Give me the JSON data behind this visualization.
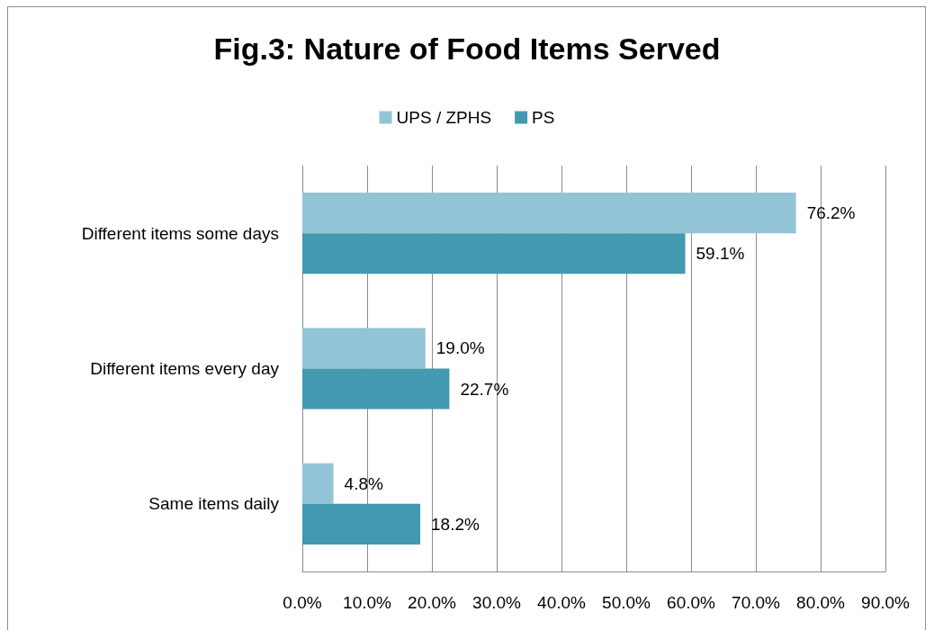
{
  "chart_data": {
    "type": "bar",
    "orientation": "horizontal",
    "title": "Fig.3: Nature of Food Items Served",
    "categories": [
      "Different items some days",
      "Different items every day",
      "Same items daily"
    ],
    "series": [
      {
        "name": "UPS / ZPHS",
        "color": "#93c4d5",
        "values": [
          76.2,
          19.0,
          4.8
        ],
        "value_labels": [
          "76.2%",
          "19.0%",
          "4.8%"
        ]
      },
      {
        "name": "PS",
        "color": "#4299b0",
        "values": [
          59.1,
          22.7,
          18.2
        ],
        "value_labels": [
          "59.1%",
          "22.7%",
          "18.2%"
        ]
      }
    ],
    "xlim": [
      0,
      90
    ],
    "xticks": [
      {
        "value": 0,
        "label": "0.0%"
      },
      {
        "value": 10,
        "label": "10.0%"
      },
      {
        "value": 20,
        "label": "20.0%"
      },
      {
        "value": 30,
        "label": "30.0%"
      },
      {
        "value": 40,
        "label": "40.0%"
      },
      {
        "value": 50,
        "label": "50.0%"
      },
      {
        "value": 60,
        "label": "60.0%"
      },
      {
        "value": 70,
        "label": "70.0%"
      },
      {
        "value": 80,
        "label": "80.0%"
      },
      {
        "value": 90,
        "label": "90.0%"
      }
    ],
    "grid": "x",
    "legend": "top"
  }
}
